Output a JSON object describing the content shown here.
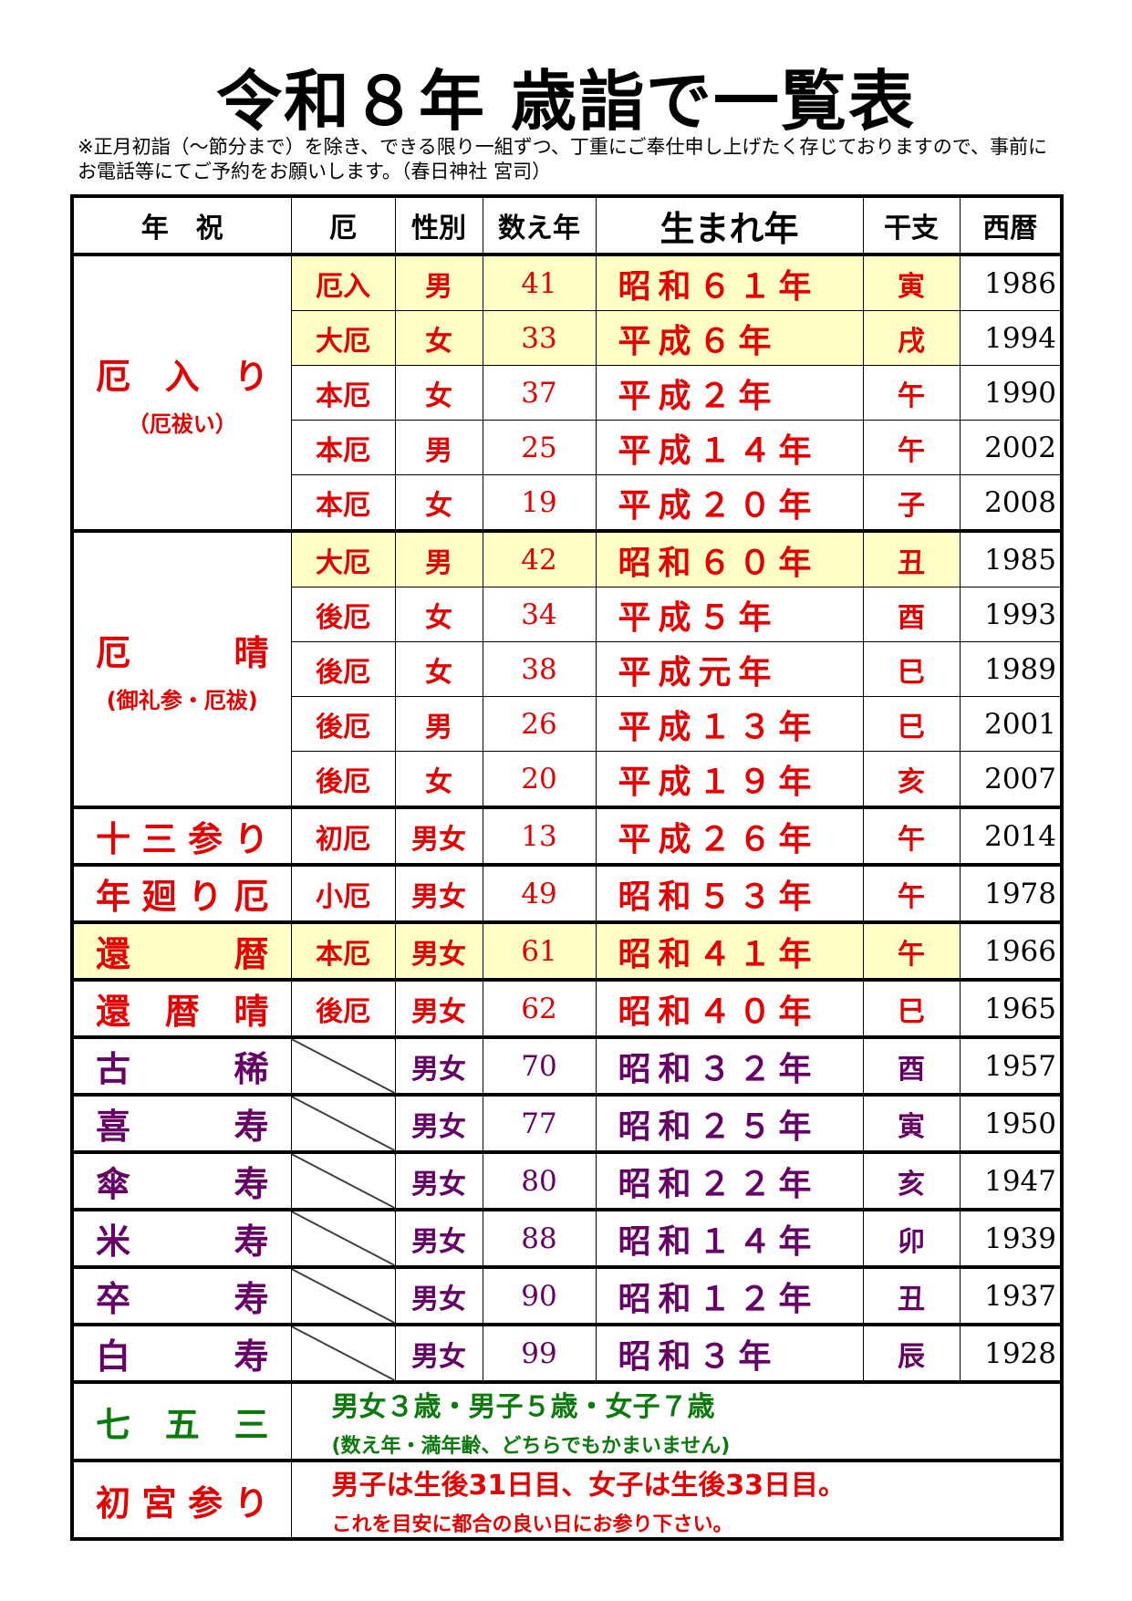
{
  "title": "令和８年 歳詣で一覧表",
  "note": "※正月初詣（～節分まで）を除き、できる限り一組ずつ、丁重にご奉仕申し上げたく存じておりますので、事前にお電話等にてご予約をお願いします。（春日神社 宮司）",
  "colors": {
    "red": "#e60000",
    "purple": "#660066",
    "green": "#0a7a0a",
    "highlight": "#ffffc6"
  },
  "headers": [
    "年　祝",
    "厄",
    "性別",
    "数え年",
    "生まれ年",
    "干支",
    "西暦"
  ],
  "groups": [
    {
      "label": "厄入り",
      "sub": "（厄祓い）",
      "color": "red",
      "rows": [
        {
          "yaku": "厄入",
          "sex": "男",
          "age": "41",
          "birth": "昭和６１年",
          "eto": "寅",
          "year": "1986",
          "highlight": true
        },
        {
          "yaku": "大厄",
          "sex": "女",
          "age": "33",
          "birth": "平成６年",
          "eto": "戌",
          "year": "1994",
          "highlight": true
        },
        {
          "yaku": "本厄",
          "sex": "女",
          "age": "37",
          "birth": "平成２年",
          "eto": "午",
          "year": "1990"
        },
        {
          "yaku": "本厄",
          "sex": "男",
          "age": "25",
          "birth": "平成１４年",
          "eto": "午",
          "year": "2002"
        },
        {
          "yaku": "本厄",
          "sex": "女",
          "age": "19",
          "birth": "平成２０年",
          "eto": "子",
          "year": "2008"
        }
      ]
    },
    {
      "label": "厄晴",
      "sub": "(御礼参・厄祓)",
      "color": "red",
      "rows": [
        {
          "yaku": "大厄",
          "sex": "男",
          "age": "42",
          "birth": "昭和６０年",
          "eto": "丑",
          "year": "1985",
          "highlight": true
        },
        {
          "yaku": "後厄",
          "sex": "女",
          "age": "34",
          "birth": "平成５年",
          "eto": "酉",
          "year": "1993"
        },
        {
          "yaku": "後厄",
          "sex": "女",
          "age": "38",
          "birth": "平成元年",
          "eto": "巳",
          "year": "1989"
        },
        {
          "yaku": "後厄",
          "sex": "男",
          "age": "26",
          "birth": "平成１３年",
          "eto": "巳",
          "year": "2001"
        },
        {
          "yaku": "後厄",
          "sex": "女",
          "age": "20",
          "birth": "平成１９年",
          "eto": "亥",
          "year": "2007"
        }
      ]
    },
    {
      "label": "十三参り",
      "color": "red",
      "rows": [
        {
          "yaku": "初厄",
          "sex": "男女",
          "age": "13",
          "birth": "平成２６年",
          "eto": "午",
          "year": "2014"
        }
      ]
    },
    {
      "label": "年廻り厄",
      "color": "red",
      "rows": [
        {
          "yaku": "小厄",
          "sex": "男女",
          "age": "49",
          "birth": "昭和５３年",
          "eto": "午",
          "year": "1978"
        }
      ]
    },
    {
      "label": "還暦",
      "color": "red",
      "group_highlight": true,
      "rows": [
        {
          "yaku": "本厄",
          "sex": "男女",
          "age": "61",
          "birth": "昭和４１年",
          "eto": "午",
          "year": "1966",
          "highlight": true
        }
      ]
    },
    {
      "label": "還暦晴",
      "color": "red",
      "rows": [
        {
          "yaku": "後厄",
          "sex": "男女",
          "age": "62",
          "birth": "昭和４０年",
          "eto": "巳",
          "year": "1965"
        }
      ]
    },
    {
      "label": "古稀",
      "color": "purple",
      "rows": [
        {
          "yaku": "",
          "sex": "男女",
          "age": "70",
          "birth": "昭和３２年",
          "eto": "酉",
          "year": "1957"
        }
      ]
    },
    {
      "label": "喜寿",
      "color": "purple",
      "rows": [
        {
          "yaku": "",
          "sex": "男女",
          "age": "77",
          "birth": "昭和２５年",
          "eto": "寅",
          "year": "1950"
        }
      ]
    },
    {
      "label": "傘寿",
      "color": "purple",
      "rows": [
        {
          "yaku": "",
          "sex": "男女",
          "age": "80",
          "birth": "昭和２２年",
          "eto": "亥",
          "year": "1947"
        }
      ]
    },
    {
      "label": "米寿",
      "color": "purple",
      "rows": [
        {
          "yaku": "",
          "sex": "男女",
          "age": "88",
          "birth": "昭和１４年",
          "eto": "卯",
          "year": "1939"
        }
      ]
    },
    {
      "label": "卒寿",
      "color": "purple",
      "rows": [
        {
          "yaku": "",
          "sex": "男女",
          "age": "90",
          "birth": "昭和１２年",
          "eto": "丑",
          "year": "1937"
        }
      ]
    },
    {
      "label": "白寿",
      "color": "purple",
      "rows": [
        {
          "yaku": "",
          "sex": "男女",
          "age": "99",
          "birth": "昭和３年",
          "eto": "辰",
          "year": "1928"
        }
      ]
    }
  ],
  "footer": [
    {
      "label": "七五三",
      "color": "green",
      "main": "男女３歳・男子５歳・女子７歳",
      "sub": "(数え年・満年齢、どちらでもかまいません)"
    },
    {
      "label": "初宮参り",
      "color": "red",
      "main": "男子は生後31日目、女子は生後33日目。",
      "sub": "これを目安に都合の良い日にお参り下さい。"
    }
  ]
}
